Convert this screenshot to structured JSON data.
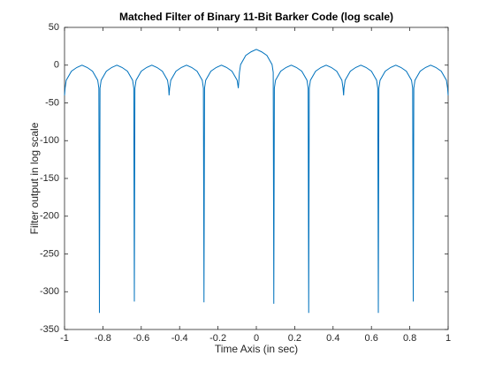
{
  "chart_data": {
    "type": "line",
    "title": "Matched Filter of Binary 11-Bit Barker Code (log scale)",
    "xlabel": "Time Axis (in sec)",
    "ylabel": "Filter output in log scale",
    "x": [
      -1,
      -0.997,
      -0.991,
      -0.964,
      -0.936,
      -0.909,
      -0.882,
      -0.854,
      -0.827,
      -0.821,
      -0.818,
      -0.815,
      -0.809,
      -0.782,
      -0.754,
      -0.727,
      -0.7,
      -0.672,
      -0.645,
      -0.639,
      -0.636,
      -0.633,
      -0.627,
      -0.6,
      -0.572,
      -0.545,
      -0.518,
      -0.49,
      -0.463,
      -0.457,
      -0.455,
      -0.452,
      -0.446,
      -0.419,
      -0.391,
      -0.364,
      -0.337,
      -0.309,
      -0.282,
      -0.276,
      -0.273,
      -0.27,
      -0.264,
      -0.237,
      -0.209,
      -0.182,
      -0.155,
      -0.127,
      -0.1,
      -0.094,
      -0.091,
      -0.088,
      -0.082,
      -0.055,
      -0.027,
      0,
      0.027,
      0.055,
      0.082,
      0.088,
      0.091,
      0.094,
      0.1,
      0.127,
      0.155,
      0.182,
      0.209,
      0.237,
      0.264,
      0.27,
      0.273,
      0.276,
      0.282,
      0.309,
      0.337,
      0.364,
      0.391,
      0.419,
      0.446,
      0.452,
      0.455,
      0.457,
      0.463,
      0.49,
      0.518,
      0.545,
      0.572,
      0.6,
      0.627,
      0.633,
      0.636,
      0.639,
      0.645,
      0.672,
      0.7,
      0.727,
      0.754,
      0.782,
      0.809,
      0.815,
      0.818,
      0.821,
      0.827,
      0.854,
      0.882,
      0.909,
      0.936,
      0.964,
      0.991,
      0.997,
      1
    ],
    "series": [
      {
        "name": "Filter output",
        "color": "#0072bd",
        "values": [
          -40,
          -30.5,
          -20,
          -8,
          -3.1,
          0,
          -3.1,
          -8,
          -20,
          -30.5,
          -328,
          -30.5,
          -20,
          -8,
          -3.1,
          0,
          -3.1,
          -8,
          -20,
          -30.5,
          -313,
          -30.5,
          -20,
          -8,
          -3.1,
          0,
          -3.1,
          -8,
          -20,
          -30.5,
          -40,
          -30.5,
          -20,
          -8,
          -3.1,
          0,
          -3.1,
          -8,
          -20,
          -30.5,
          -314,
          -30.5,
          -20,
          -8,
          -3.1,
          0,
          -3.1,
          -8,
          -20,
          -30.5,
          -20,
          -9.6,
          0.8,
          12.9,
          17.7,
          20.8,
          17.7,
          12.9,
          0.8,
          -9.6,
          -316,
          -30.5,
          -20,
          -8,
          -3.1,
          0,
          -3.1,
          -8,
          -20,
          -30.5,
          -328,
          -30.5,
          -20,
          -8,
          -3.1,
          0,
          -3.1,
          -8,
          -20,
          -30.5,
          -40,
          -30.5,
          -20,
          -8,
          -3.1,
          0,
          -3.1,
          -8,
          -20,
          -30.5,
          -328,
          -30.5,
          -20,
          -8,
          -3.1,
          0,
          -3.1,
          -8,
          -20,
          -30.5,
          -313,
          -30.5,
          -20,
          -8,
          -3.1,
          0,
          -3.1,
          -8,
          -20,
          -30.5,
          -40
        ]
      }
    ],
    "xlim": [
      -1,
      1
    ],
    "xticks": [
      -1,
      -0.8,
      -0.6,
      -0.4,
      -0.2,
      0,
      0.2,
      0.4,
      0.6,
      0.8,
      1
    ],
    "ylim": [
      -350,
      50
    ],
    "yticks": [
      50,
      0,
      -50,
      -100,
      -150,
      -200,
      -250,
      -300,
      -350
    ],
    "grid": false
  }
}
